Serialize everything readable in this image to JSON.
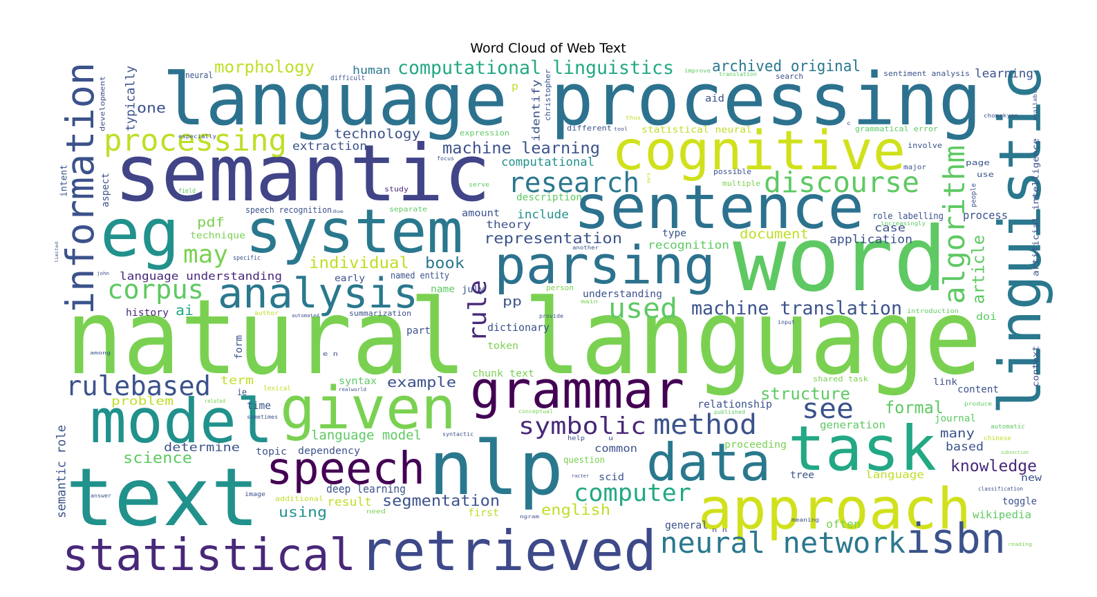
{
  "chart_data": {
    "type": "wordcloud",
    "title": "Word Cloud of Web Text",
    "background": "#ffffff",
    "words": [
      {
        "text": "natural language",
        "color": "#7ad151"
      },
      {
        "text": "language processing",
        "color": "#2c728e"
      },
      {
        "text": "semantic",
        "color": "#414487"
      },
      {
        "text": "eg",
        "color": "#21918c"
      },
      {
        "text": "system",
        "color": "#2a788e"
      },
      {
        "text": "cognitive",
        "color": "#d0e11c"
      },
      {
        "text": "sentence",
        "color": "#2c728e"
      },
      {
        "text": "word",
        "color": "#5ec962"
      },
      {
        "text": "linguistic",
        "color": "#2a788e"
      },
      {
        "text": "information",
        "color": "#3b528b"
      },
      {
        "text": "parsing",
        "color": "#2c728e"
      },
      {
        "text": "analysis",
        "color": "#2a788e"
      },
      {
        "text": "processing",
        "color": "#bddf26"
      },
      {
        "text": "research",
        "color": "#2a788e"
      },
      {
        "text": "discourse",
        "color": "#5ec962"
      },
      {
        "text": "may",
        "color": "#7ad151"
      },
      {
        "text": "corpus",
        "color": "#5ec962"
      },
      {
        "text": "used",
        "color": "#5ec962"
      },
      {
        "text": "rule",
        "color": "#482878"
      },
      {
        "text": "algorithm",
        "color": "#5ec962"
      },
      {
        "text": "article",
        "color": "#5ec962"
      },
      {
        "text": "grammar",
        "color": "#440154"
      },
      {
        "text": "given",
        "color": "#7ad151"
      },
      {
        "text": "model",
        "color": "#21918c"
      },
      {
        "text": "rulebased",
        "color": "#3b528b"
      },
      {
        "text": "text",
        "color": "#21918c"
      },
      {
        "text": "speech",
        "color": "#440154"
      },
      {
        "text": "nlp",
        "color": "#2a788e"
      },
      {
        "text": "data",
        "color": "#2a788e"
      },
      {
        "text": "task",
        "color": "#22a884"
      },
      {
        "text": "approach",
        "color": "#d0e11c"
      },
      {
        "text": "statistical",
        "color": "#482878"
      },
      {
        "text": "retrieved",
        "color": "#3e4989"
      },
      {
        "text": "isbn",
        "color": "#3b528b"
      },
      {
        "text": "neural network",
        "color": "#2a788e"
      },
      {
        "text": "computer",
        "color": "#22a884"
      },
      {
        "text": "symbolic",
        "color": "#482878"
      },
      {
        "text": "method",
        "color": "#3b528b"
      },
      {
        "text": "see",
        "color": "#3b528b"
      },
      {
        "text": "structure",
        "color": "#5ec962"
      },
      {
        "text": "formal",
        "color": "#5ec962"
      },
      {
        "text": "machine translation",
        "color": "#3b528b"
      },
      {
        "text": "knowledge",
        "color": "#482878"
      },
      {
        "text": "segmentation",
        "color": "#3b528b"
      },
      {
        "text": "science",
        "color": "#5ec962"
      },
      {
        "text": "computational linguistics",
        "color": "#22a884"
      },
      {
        "text": "morphology",
        "color": "#bddf26"
      },
      {
        "text": "archived original",
        "color": "#2a788e"
      },
      {
        "text": "machine learning",
        "color": "#3b528b"
      },
      {
        "text": "technology",
        "color": "#3b528b"
      },
      {
        "text": "extraction",
        "color": "#3b528b"
      },
      {
        "text": "computational",
        "color": "#21918c"
      },
      {
        "text": "one",
        "color": "#3b528b"
      },
      {
        "text": "typically",
        "color": "#3b528b"
      },
      {
        "text": "human",
        "color": "#2a788e"
      },
      {
        "text": "learning",
        "color": "#3b528b"
      },
      {
        "text": "representation",
        "color": "#3b528b"
      },
      {
        "text": "individual",
        "color": "#bddf26"
      },
      {
        "text": "book",
        "color": "#2a788e"
      },
      {
        "text": "pdf",
        "color": "#7ad151"
      },
      {
        "text": "pp",
        "color": "#3b528b"
      },
      {
        "text": "include",
        "color": "#21918c"
      },
      {
        "text": "theory",
        "color": "#3b528b"
      },
      {
        "text": "amount",
        "color": "#3b528b"
      },
      {
        "text": "description",
        "color": "#5ec962"
      },
      {
        "text": "case",
        "color": "#3b528b"
      },
      {
        "text": "process",
        "color": "#3b528b"
      },
      {
        "text": "role labelling",
        "color": "#3b528b"
      },
      {
        "text": "application",
        "color": "#3b528b"
      },
      {
        "text": "document",
        "color": "#bddf26"
      },
      {
        "text": "type",
        "color": "#3b528b"
      },
      {
        "text": "recognition",
        "color": "#5ec962"
      },
      {
        "text": "language understanding",
        "color": "#482878"
      },
      {
        "text": "early",
        "color": "#3b528b"
      },
      {
        "text": "named entity",
        "color": "#3b528b"
      },
      {
        "text": "history",
        "color": "#482878"
      },
      {
        "text": "ai",
        "color": "#22a884"
      },
      {
        "text": "understanding",
        "color": "#3b528b"
      },
      {
        "text": "dictionary",
        "color": "#3b528b"
      },
      {
        "text": "token",
        "color": "#7ad151"
      },
      {
        "text": "name",
        "color": "#5ec962"
      },
      {
        "text": "july",
        "color": "#3b528b"
      },
      {
        "text": "summarization",
        "color": "#3b528b"
      },
      {
        "text": "part",
        "color": "#3b528b"
      },
      {
        "text": "form",
        "color": "#3b528b"
      },
      {
        "text": "chunk text",
        "color": "#7ad151"
      },
      {
        "text": "example",
        "color": "#3b528b"
      },
      {
        "text": "syntax",
        "color": "#5ec962"
      },
      {
        "text": "term",
        "color": "#bddf26"
      },
      {
        "text": "ie",
        "color": "#3b528b"
      },
      {
        "text": "problem",
        "color": "#bddf26"
      },
      {
        "text": "time",
        "color": "#3b528b"
      },
      {
        "text": "language model",
        "color": "#5ec962"
      },
      {
        "text": "determine",
        "color": "#3b528b"
      },
      {
        "text": "topic",
        "color": "#3b528b"
      },
      {
        "text": "dependency",
        "color": "#3b528b"
      },
      {
        "text": "deep learning",
        "color": "#3b528b"
      },
      {
        "text": "result",
        "color": "#bddf26"
      },
      {
        "text": "using",
        "color": "#21918c"
      },
      {
        "text": "first",
        "color": "#bddf26"
      },
      {
        "text": "english",
        "color": "#bddf26"
      },
      {
        "text": "semantic role",
        "color": "#3b528b"
      },
      {
        "text": "relationship",
        "color": "#3b528b"
      },
      {
        "text": "generation",
        "color": "#5ec962"
      },
      {
        "text": "journal",
        "color": "#5ec962"
      },
      {
        "text": "many",
        "color": "#3b528b"
      },
      {
        "text": "based",
        "color": "#3b528b"
      },
      {
        "text": "common",
        "color": "#3b528b"
      },
      {
        "text": "scid",
        "color": "#3b528b"
      },
      {
        "text": "question",
        "color": "#7ad151"
      },
      {
        "text": "proceeding",
        "color": "#7ad151"
      },
      {
        "text": "language",
        "color": "#bddf26"
      },
      {
        "text": "tree",
        "color": "#3b528b"
      },
      {
        "text": "general",
        "color": "#3b528b"
      },
      {
        "text": "often",
        "color": "#7ad151"
      },
      {
        "text": "wikipedia",
        "color": "#5ec962"
      },
      {
        "text": "toggle",
        "color": "#3b528b"
      },
      {
        "text": "content",
        "color": "#3b528b"
      },
      {
        "text": "link",
        "color": "#3b528b"
      },
      {
        "text": "shared task",
        "color": "#7ad151"
      },
      {
        "text": "new",
        "color": "#3b528b"
      },
      {
        "text": "doi",
        "color": "#5ec962"
      },
      {
        "text": "aid",
        "color": "#3b528b"
      },
      {
        "text": "identify",
        "color": "#3b528b"
      },
      {
        "text": "statistical neural",
        "color": "#bddf26"
      },
      {
        "text": "grammatical error",
        "color": "#5ec962"
      },
      {
        "text": "involve",
        "color": "#3b528b"
      },
      {
        "text": "sentiment analysis",
        "color": "#3b528b"
      },
      {
        "text": "search",
        "color": "#3b528b"
      },
      {
        "text": "artificial intelligence",
        "color": "#3b528b"
      },
      {
        "text": "context",
        "color": "#3b528b"
      },
      {
        "text": "page",
        "color": "#3b528b"
      },
      {
        "text": "use",
        "color": "#3b528b"
      },
      {
        "text": "possible",
        "color": "#3b528b"
      },
      {
        "text": "multiple",
        "color": "#7ad151"
      },
      {
        "text": "major",
        "color": "#3b528b"
      },
      {
        "text": "people",
        "color": "#3b528b"
      },
      {
        "text": "speech recognition",
        "color": "#3b528b"
      },
      {
        "text": "technique",
        "color": "#7ad151"
      },
      {
        "text": "aspect",
        "color": "#3b528b"
      },
      {
        "text": "intent",
        "color": "#3b528b"
      },
      {
        "text": "development",
        "color": "#3b528b"
      },
      {
        "text": "neural",
        "color": "#3b528b"
      },
      {
        "text": "difficult",
        "color": "#3b528b"
      },
      {
        "text": "p",
        "color": "#bddf26"
      },
      {
        "text": "christopher",
        "color": "#3b528b"
      },
      {
        "text": "expression",
        "color": "#5ec962"
      },
      {
        "text": "different",
        "color": "#3b528b"
      },
      {
        "text": "focus",
        "color": "#3b528b"
      },
      {
        "text": "study",
        "color": "#482878"
      },
      {
        "text": "separate",
        "color": "#5ec962"
      },
      {
        "text": "serve",
        "color": "#5ec962"
      },
      {
        "text": "field",
        "color": "#5ec962"
      },
      {
        "text": "especially",
        "color": "#3b528b"
      },
      {
        "text": "improve",
        "color": "#5ec962"
      },
      {
        "text": "translation",
        "color": "#5ec962"
      },
      {
        "text": "chomskyan",
        "color": "#3b528b"
      },
      {
        "text": "available",
        "color": "#3b528b"
      },
      {
        "text": "increasingly",
        "color": "#5ec962"
      },
      {
        "text": "another",
        "color": "#3b528b"
      },
      {
        "text": "specific",
        "color": "#3b528b"
      },
      {
        "text": "person",
        "color": "#7ad151"
      },
      {
        "text": "main",
        "color": "#7ad151"
      },
      {
        "text": "author",
        "color": "#bddf26"
      },
      {
        "text": "automated",
        "color": "#3b528b"
      },
      {
        "text": "provide",
        "color": "#3b528b"
      },
      {
        "text": "introduction",
        "color": "#5ec962"
      },
      {
        "text": "input",
        "color": "#3b528b"
      },
      {
        "text": "among",
        "color": "#3b528b"
      },
      {
        "text": "lexical",
        "color": "#bddf26"
      },
      {
        "text": "realworld",
        "color": "#3b528b"
      },
      {
        "text": "related",
        "color": "#7ad151"
      },
      {
        "text": "sometimes",
        "color": "#3b528b"
      },
      {
        "text": "published",
        "color": "#5ec962"
      },
      {
        "text": "produce",
        "color": "#5ec962"
      },
      {
        "text": "automatic",
        "color": "#5ec962"
      },
      {
        "text": "chinese",
        "color": "#bddf26"
      },
      {
        "text": "subsection",
        "color": "#7ad151"
      },
      {
        "text": "conceptual",
        "color": "#7ad151"
      },
      {
        "text": "syntactic",
        "color": "#3b528b"
      },
      {
        "text": "help",
        "color": "#3b528b"
      },
      {
        "text": "u",
        "color": "#3b528b"
      },
      {
        "text": "racter",
        "color": "#3b528b"
      },
      {
        "text": "image",
        "color": "#3b528b"
      },
      {
        "text": "additional",
        "color": "#bddf26"
      },
      {
        "text": "answer",
        "color": "#3b528b"
      },
      {
        "text": "need",
        "color": "#7ad151"
      },
      {
        "text": "ngram",
        "color": "#3b528b"
      },
      {
        "text": "meaning",
        "color": "#3b528b"
      },
      {
        "text": "classification",
        "color": "#3b528b"
      },
      {
        "text": "reading",
        "color": "#7ad151"
      },
      {
        "text": "limited",
        "color": "#3b528b"
      },
      {
        "text": "john",
        "color": "#3b528b"
      },
      {
        "text": "e n",
        "color": "#3b528b"
      },
      {
        "text": "n n",
        "color": "#3b528b"
      },
      {
        "text": "thus",
        "color": "#bddf26"
      },
      {
        "text": "tool",
        "color": "#3b528b"
      },
      {
        "text": "mark",
        "color": "#bddf26"
      },
      {
        "text": "due",
        "color": "#3b528b"
      },
      {
        "text": "c",
        "color": "#3b528b"
      }
    ]
  }
}
